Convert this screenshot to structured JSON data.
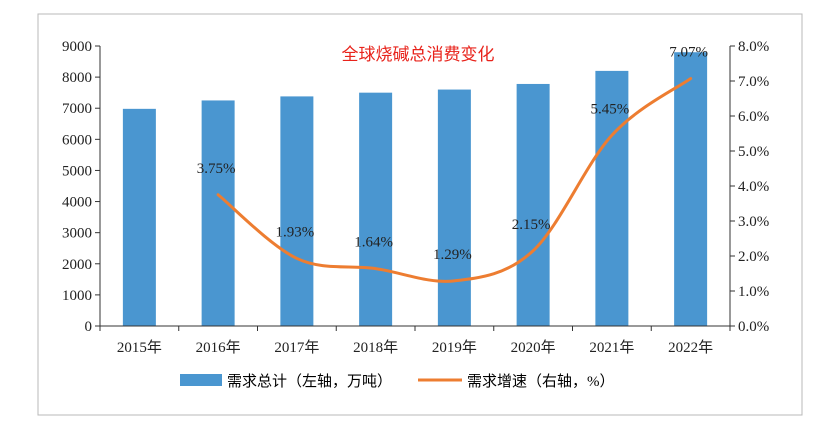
{
  "chart_data": {
    "type": "bar",
    "title": "全球烧碱总消费变化",
    "categories": [
      "2015年",
      "2016年",
      "2017年",
      "2018年",
      "2019年",
      "2020年",
      "2021年",
      "2022年"
    ],
    "series": [
      {
        "name": "需求总计（左轴，万吨）",
        "type": "bar",
        "axis": "left",
        "values": [
          6980,
          7250,
          7380,
          7500,
          7600,
          7780,
          8200,
          8800
        ]
      },
      {
        "name": "需求增速（右轴，%）",
        "type": "line",
        "axis": "right",
        "values": [
          null,
          3.75,
          1.93,
          1.64,
          1.29,
          2.15,
          5.45,
          7.07
        ],
        "labels": [
          "",
          "3.75%",
          "1.93%",
          "1.64%",
          "1.29%",
          "2.15%",
          "5.45%",
          "7.07%"
        ]
      }
    ],
    "left_axis": {
      "range": [
        0,
        9000
      ],
      "ticks": [
        "0",
        "1000",
        "2000",
        "3000",
        "4000",
        "5000",
        "6000",
        "7000",
        "8000",
        "9000"
      ]
    },
    "right_axis": {
      "range": [
        0,
        8
      ],
      "ticks": [
        "0.0%",
        "1.0%",
        "2.0%",
        "3.0%",
        "4.0%",
        "5.0%",
        "6.0%",
        "7.0%",
        "8.0%"
      ]
    },
    "grid": false,
    "legend_position": "bottom",
    "colors": {
      "bar": "#4a96d0",
      "line": "#ed7d31",
      "title": "#e8231b",
      "axis": "#333333"
    }
  }
}
